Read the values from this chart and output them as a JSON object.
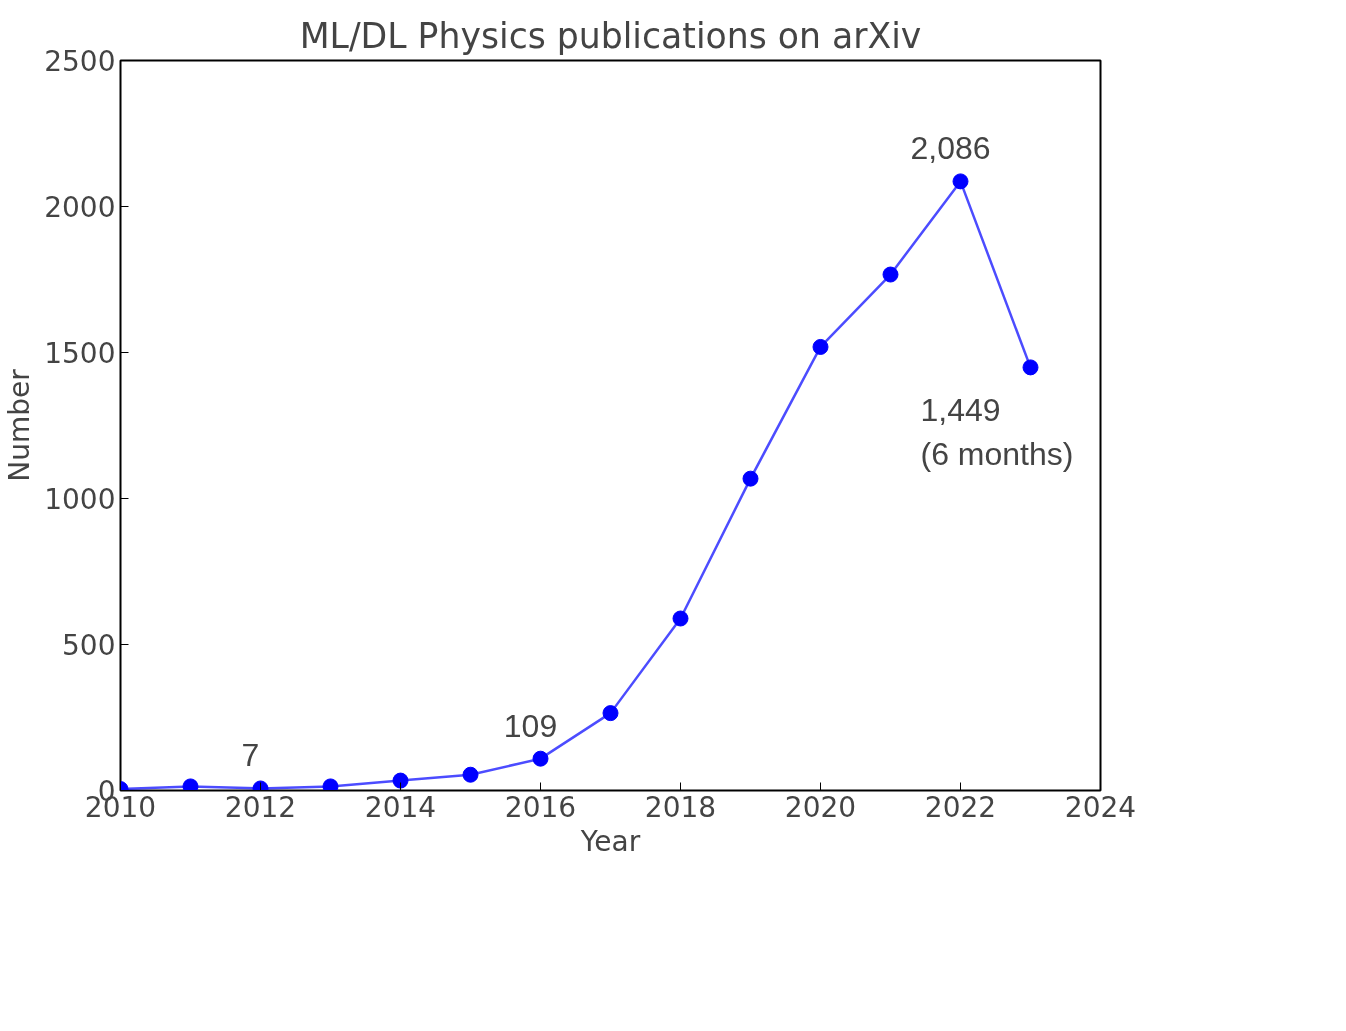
{
  "chart_data": {
    "type": "line",
    "title": "ML/DL Physics publications on arXiv",
    "xlabel": "Year",
    "ylabel": "Number",
    "x": [
      2010,
      2011,
      2012,
      2013,
      2014,
      2015,
      2016,
      2017,
      2018,
      2019,
      2020,
      2021,
      2022,
      2023
    ],
    "series": [
      {
        "color": "#0000ff",
        "values": [
          5,
          14,
          7,
          14,
          34,
          54,
          109,
          265,
          589,
          1068,
          1519,
          1767,
          2086,
          1449
        ]
      }
    ],
    "xlim": [
      2010,
      2024
    ],
    "xticks": [
      2010,
      2012,
      2014,
      2016,
      2018,
      2020,
      2022,
      2024
    ],
    "ylim": [
      0,
      2500
    ],
    "yticks": [
      0,
      500,
      1000,
      1500,
      2000,
      2500
    ],
    "grid": false,
    "marker": "circle",
    "line_style": "solid",
    "annotations": [
      {
        "text": "7",
        "x": 2012,
        "y": 7
      },
      {
        "text": "109",
        "x": 2016,
        "y": 109
      },
      {
        "text": "2,086",
        "x": 2022,
        "y": 2086
      },
      {
        "text": "1,449\n(6 months)",
        "x": 2023,
        "y": 1449
      }
    ]
  }
}
